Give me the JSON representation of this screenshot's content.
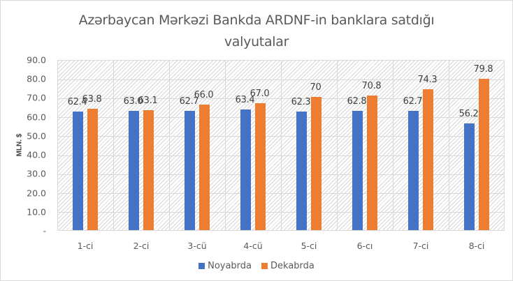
{
  "chart_data": {
    "type": "bar",
    "title": "Azərbaycan Mərkəzi Bankda ARDNF-in banklara satdığı valyutalar",
    "title_lines": [
      "Azərbaycan Mərkəzi Bankda ARDNF-in banklara satdığı",
      "valyutalar"
    ],
    "xlabel": "",
    "ylabel": "MLN. $",
    "ylim": [
      0,
      90
    ],
    "yticks": [
      "-",
      "10.0",
      "20.0",
      "30.0",
      "40.0",
      "50.0",
      "60.0",
      "70.0",
      "80.0",
      "90.0"
    ],
    "grid": true,
    "legend_position": "bottom",
    "categories": [
      "1-ci",
      "2-ci",
      "3-cü",
      "4-cü",
      "5-ci",
      "6-cı",
      "7-ci",
      "8-ci"
    ],
    "series": [
      {
        "name": "Noyabrda",
        "color": "#4472c4",
        "values": [
          62.4,
          63.0,
          62.7,
          63.4,
          62.3,
          62.8,
          62.7,
          56.2
        ],
        "labels": [
          "62.4",
          "63.0",
          "62.7",
          "63.4",
          "62.3",
          "62.8",
          "62.7",
          "56.2"
        ]
      },
      {
        "name": "Dekabrda",
        "color": "#ed7d31",
        "values": [
          63.8,
          63.1,
          66.0,
          67.0,
          70,
          70.8,
          74.3,
          79.8
        ],
        "labels": [
          "63.8",
          "63.1",
          "66.0",
          "67.0",
          "70",
          "70.8",
          "74.3",
          "79.8"
        ]
      }
    ]
  }
}
